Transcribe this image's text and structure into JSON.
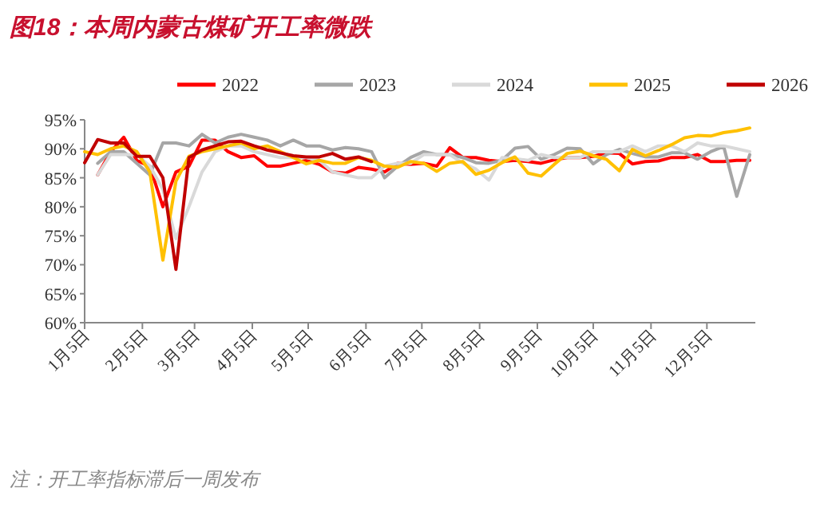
{
  "chart_data": {
    "type": "line",
    "title": "图18：本周内蒙古煤矿开工率微跌",
    "annotations": [
      "注：开工率指标滞后一周发布"
    ],
    "x": [
      "--01-05",
      "--01-12",
      "--01-19",
      "--01-26",
      "--02-02",
      "--02-09",
      "--02-16",
      "--02-23",
      "--03-02",
      "--03-09",
      "--03-16",
      "--03-23",
      "--03-30",
      "--04-06",
      "--04-13",
      "--04-20",
      "--04-27",
      "--05-04",
      "--05-11",
      "--05-18",
      "--05-25",
      "--06-01",
      "--06-08",
      "--06-15",
      "--06-22",
      "--06-29",
      "--07-06",
      "--07-13",
      "--07-20",
      "--07-27",
      "--08-03",
      "--08-10",
      "--08-17",
      "--08-24",
      "--08-31",
      "--09-07",
      "--09-14",
      "--09-21",
      "--09-28",
      "--10-05",
      "--10-12",
      "--10-19",
      "--10-26",
      "--11-02",
      "--11-09",
      "--11-16",
      "--11-23",
      "--11-30",
      "--12-07",
      "--12-14",
      "--12-21",
      "--12-28"
    ],
    "series": [
      {
        "name": "2022",
        "color": "#ff0000",
        "values": [
          null,
          85.5,
          89.5,
          92,
          88,
          87,
          80,
          86,
          87,
          91.5,
          91.5,
          89.5,
          88.5,
          88.8,
          87,
          87,
          87.5,
          88,
          87.3,
          86,
          85.8,
          86.8,
          86.5,
          86,
          87.5,
          87.3,
          87.5,
          87,
          90.2,
          88.5,
          88.5,
          88,
          87.8,
          88,
          87.8,
          87.5,
          88.1,
          88.5,
          88.5,
          88.7,
          89.3,
          89.2,
          87.4,
          87.8,
          87.9,
          88.5,
          88.5,
          89,
          87.8,
          87.8,
          88,
          88
        ]
      },
      {
        "name": "2023",
        "color": "#a6a6a6",
        "values": [
          null,
          87.5,
          89.5,
          89.5,
          87.5,
          85.5,
          91,
          91,
          90.5,
          92.5,
          91,
          92,
          92.5,
          92,
          91.5,
          90.5,
          91.5,
          90.5,
          90.5,
          89.8,
          90.2,
          90,
          89.5,
          85,
          87,
          88.5,
          89.5,
          89,
          89,
          88.5,
          87.6,
          87.5,
          88,
          90.1,
          90.4,
          88.2,
          89,
          90.1,
          90,
          87.4,
          89,
          89.9,
          89.2,
          88.6,
          88.6,
          89.3,
          89.3,
          88.2,
          89.5,
          90.4,
          81.8,
          89
        ]
      },
      {
        "name": "2024",
        "color": "#d9d9d9",
        "values": [
          null,
          85.5,
          89,
          89,
          89,
          87,
          83,
          74.5,
          80,
          86,
          89.5,
          90.5,
          90.5,
          89.5,
          89,
          88.5,
          88.5,
          88.5,
          88,
          86,
          85.5,
          85,
          85,
          87,
          87.5,
          87.5,
          89,
          89,
          89,
          87.5,
          86.5,
          84.6,
          88.5,
          88.3,
          88,
          89,
          88.5,
          88.5,
          88.5,
          89.5,
          89.5,
          89.5,
          90.5,
          89.5,
          90.5,
          90.5,
          89.5,
          91,
          90.5,
          90.5,
          90,
          89.5
        ]
      },
      {
        "name": "2025",
        "color": "#ffc000",
        "values": [
          89.5,
          89,
          90,
          90.5,
          89.5,
          86,
          70.8,
          84.4,
          88.7,
          89.5,
          90,
          90.5,
          91,
          90,
          90.5,
          89.5,
          88.5,
          87.4,
          88,
          87.5,
          87.5,
          88.5,
          88,
          87,
          86.8,
          87.8,
          87.5,
          86.1,
          87.5,
          87.8,
          85.6,
          86.3,
          87.6,
          88.6,
          85.8,
          85.3,
          87.3,
          89.2,
          89.6,
          88.8,
          88.2,
          86.2,
          89.9,
          88.8,
          89.7,
          90.7,
          91.9,
          92.3,
          92.2,
          92.8,
          93.1,
          93.6
        ]
      },
      {
        "name": "2026",
        "color": "#c00000",
        "values": [
          87.6,
          91.6,
          91,
          91,
          88.7,
          88.7,
          85,
          69.2,
          88.5,
          89.8,
          90.5,
          91.2,
          91.3,
          90.5,
          89.8,
          89.3,
          88.8,
          88.6,
          88.6,
          89.2,
          88.2,
          88.6,
          87.8,
          null,
          null,
          null,
          null,
          null,
          null,
          null,
          null,
          null,
          null,
          null,
          null,
          null,
          null,
          null,
          null,
          null,
          null,
          null,
          null,
          null,
          null,
          null,
          null,
          null,
          null,
          null,
          null,
          null
        ]
      }
    ],
    "xlim": [
      "--01-05",
      "--12-31"
    ],
    "xticks": [
      {
        "value": "--01-05",
        "label": "1月5日"
      },
      {
        "value": "--02-05",
        "label": "2月5日"
      },
      {
        "value": "--03-05",
        "label": "3月5日"
      },
      {
        "value": "--04-05",
        "label": "4月5日"
      },
      {
        "value": "--05-05",
        "label": "5月5日"
      },
      {
        "value": "--06-05",
        "label": "6月5日"
      },
      {
        "value": "--07-05",
        "label": "7月5日"
      },
      {
        "value": "--08-05",
        "label": "8月5日"
      },
      {
        "value": "--09-05",
        "label": "9月5日"
      },
      {
        "value": "--10-05",
        "label": "10月5日"
      },
      {
        "value": "--11-05",
        "label": "11月5日"
      },
      {
        "value": "--12-05",
        "label": "12月5日"
      }
    ],
    "ylim": [
      60,
      95
    ],
    "yticks": [
      {
        "value": 60,
        "label": "60%"
      },
      {
        "value": 65,
        "label": "65%"
      },
      {
        "value": 70,
        "label": "70%"
      },
      {
        "value": 75,
        "label": "75%"
      },
      {
        "value": 80,
        "label": "80%"
      },
      {
        "value": 85,
        "label": "85%"
      },
      {
        "value": 90,
        "label": "90%"
      },
      {
        "value": 95,
        "label": "95%"
      }
    ],
    "legend": "top",
    "grid": false,
    "marker": "none",
    "line_style": "solid"
  }
}
